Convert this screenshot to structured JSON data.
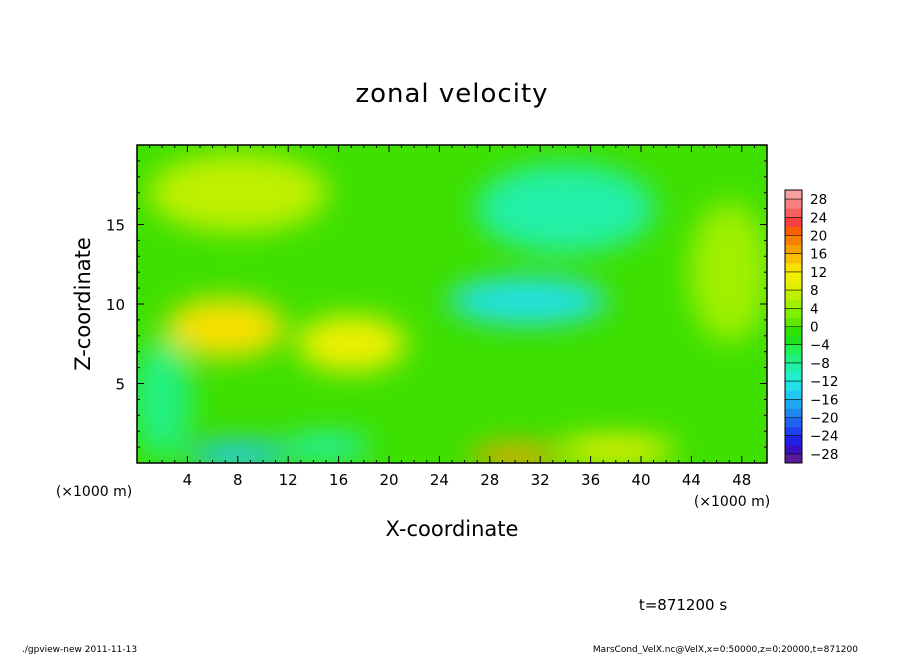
{
  "chart_data": {
    "type": "heatmap",
    "title": "zonal velocity",
    "xlabel": "X-coordinate",
    "ylabel": "Z-coordinate",
    "x_unit_label": "(×1000 m)",
    "y_unit_label": "(×1000 m)",
    "xlim": [
      0,
      50
    ],
    "ylim": [
      0,
      20
    ],
    "x_ticks": [
      "4",
      "8",
      "12",
      "16",
      "20",
      "24",
      "28",
      "32",
      "36",
      "40",
      "44",
      "48"
    ],
    "x_tick_values": [
      4,
      8,
      12,
      16,
      20,
      24,
      28,
      32,
      36,
      40,
      44,
      48
    ],
    "y_ticks": [
      "5",
      "10",
      "15"
    ],
    "y_tick_values": [
      5,
      10,
      15
    ],
    "colorbar": {
      "labels": [
        "28",
        "24",
        "20",
        "16",
        "12",
        "8",
        "4",
        "0",
        "−4",
        "−8",
        "−12",
        "−16",
        "−20",
        "−24",
        "−28"
      ],
      "levels": [
        -30,
        -28,
        -26,
        -24,
        -22,
        -20,
        -18,
        -16,
        -14,
        -12,
        -10,
        -8,
        -6,
        -4,
        -2,
        0,
        2,
        4,
        6,
        8,
        10,
        12,
        14,
        16,
        18,
        20,
        22,
        24,
        26,
        28,
        30
      ],
      "colors": [
        "#5a1a9a",
        "#3a0fc0",
        "#2020e8",
        "#1e40f0",
        "#1e64f0",
        "#1e88f0",
        "#20a8f0",
        "#20c8f0",
        "#20e0e8",
        "#20f0d0",
        "#20f0a8",
        "#20f080",
        "#20f050",
        "#20e020",
        "#30e000",
        "#60e800",
        "#80f000",
        "#a0f000",
        "#c0f000",
        "#e0f000",
        "#f0f000",
        "#f8e000",
        "#f8c000",
        "#f8a000",
        "#f88000",
        "#f86000",
        "#f84040",
        "#f86060",
        "#f88080",
        "#f8a0a0"
      ]
    },
    "field_features": [
      {
        "x": 7,
        "z": 8.5,
        "value": 12,
        "note": "warm"
      },
      {
        "x": 17,
        "z": 7.5,
        "value": 10
      },
      {
        "x": 8,
        "z": 17,
        "value": 7
      },
      {
        "x": 31,
        "z": 10.2,
        "value": -14
      },
      {
        "x": 34,
        "z": 16,
        "value": -9
      },
      {
        "x": 8,
        "z": 0.5,
        "value": -15
      },
      {
        "x": 15,
        "z": 1,
        "value": -10
      },
      {
        "x": 30,
        "z": 0.4,
        "value": 16
      },
      {
        "x": 38,
        "z": 0.8,
        "value": 10
      },
      {
        "x": 2,
        "z": 4,
        "value": -8
      },
      {
        "x": 47,
        "z": 12,
        "value": 4
      }
    ]
  },
  "time_label": "t=871200 s",
  "footer_left": "./gpview-new  2011-11-13",
  "footer_right": "MarsCond_VelX.nc@VelX,x=0:50000,z=0:20000,t=871200"
}
